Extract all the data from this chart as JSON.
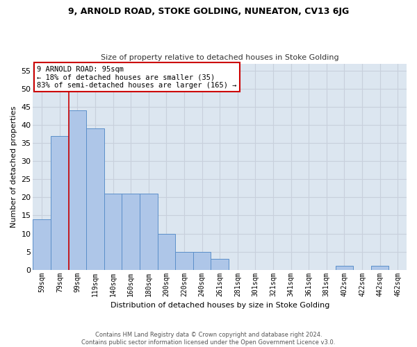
{
  "title": "9, ARNOLD ROAD, STOKE GOLDING, NUNEATON, CV13 6JG",
  "subtitle": "Size of property relative to detached houses in Stoke Golding",
  "xlabel": "Distribution of detached houses by size in Stoke Golding",
  "ylabel": "Number of detached properties",
  "footer_line1": "Contains HM Land Registry data © Crown copyright and database right 2024.",
  "footer_line2": "Contains public sector information licensed under the Open Government Licence v3.0.",
  "bar_labels": [
    "59sqm",
    "79sqm",
    "99sqm",
    "119sqm",
    "140sqm",
    "160sqm",
    "180sqm",
    "200sqm",
    "220sqm",
    "240sqm",
    "261sqm",
    "281sqm",
    "301sqm",
    "321sqm",
    "341sqm",
    "361sqm",
    "381sqm",
    "402sqm",
    "422sqm",
    "442sqm",
    "462sqm"
  ],
  "bar_values": [
    14,
    37,
    44,
    39,
    21,
    21,
    21,
    10,
    5,
    5,
    3,
    0,
    0,
    0,
    0,
    0,
    0,
    1,
    0,
    1,
    0
  ],
  "bar_color": "#aec6e8",
  "bar_edge_color": "#5b8fc9",
  "vline_pos": 1.5,
  "annotation_title": "9 ARNOLD ROAD: 95sqm",
  "annotation_line1": "← 18% of detached houses are smaller (35)",
  "annotation_line2": "83% of semi-detached houses are larger (165) →",
  "annotation_box_color": "#ffffff",
  "annotation_box_edge_color": "#cc0000",
  "vline_color": "#cc0000",
  "grid_color": "#c8d0dc",
  "bg_color": "#dce6f0",
  "background_color": "#ffffff",
  "ylim": [
    0,
    57
  ],
  "yticks": [
    0,
    5,
    10,
    15,
    20,
    25,
    30,
    35,
    40,
    45,
    50,
    55
  ]
}
